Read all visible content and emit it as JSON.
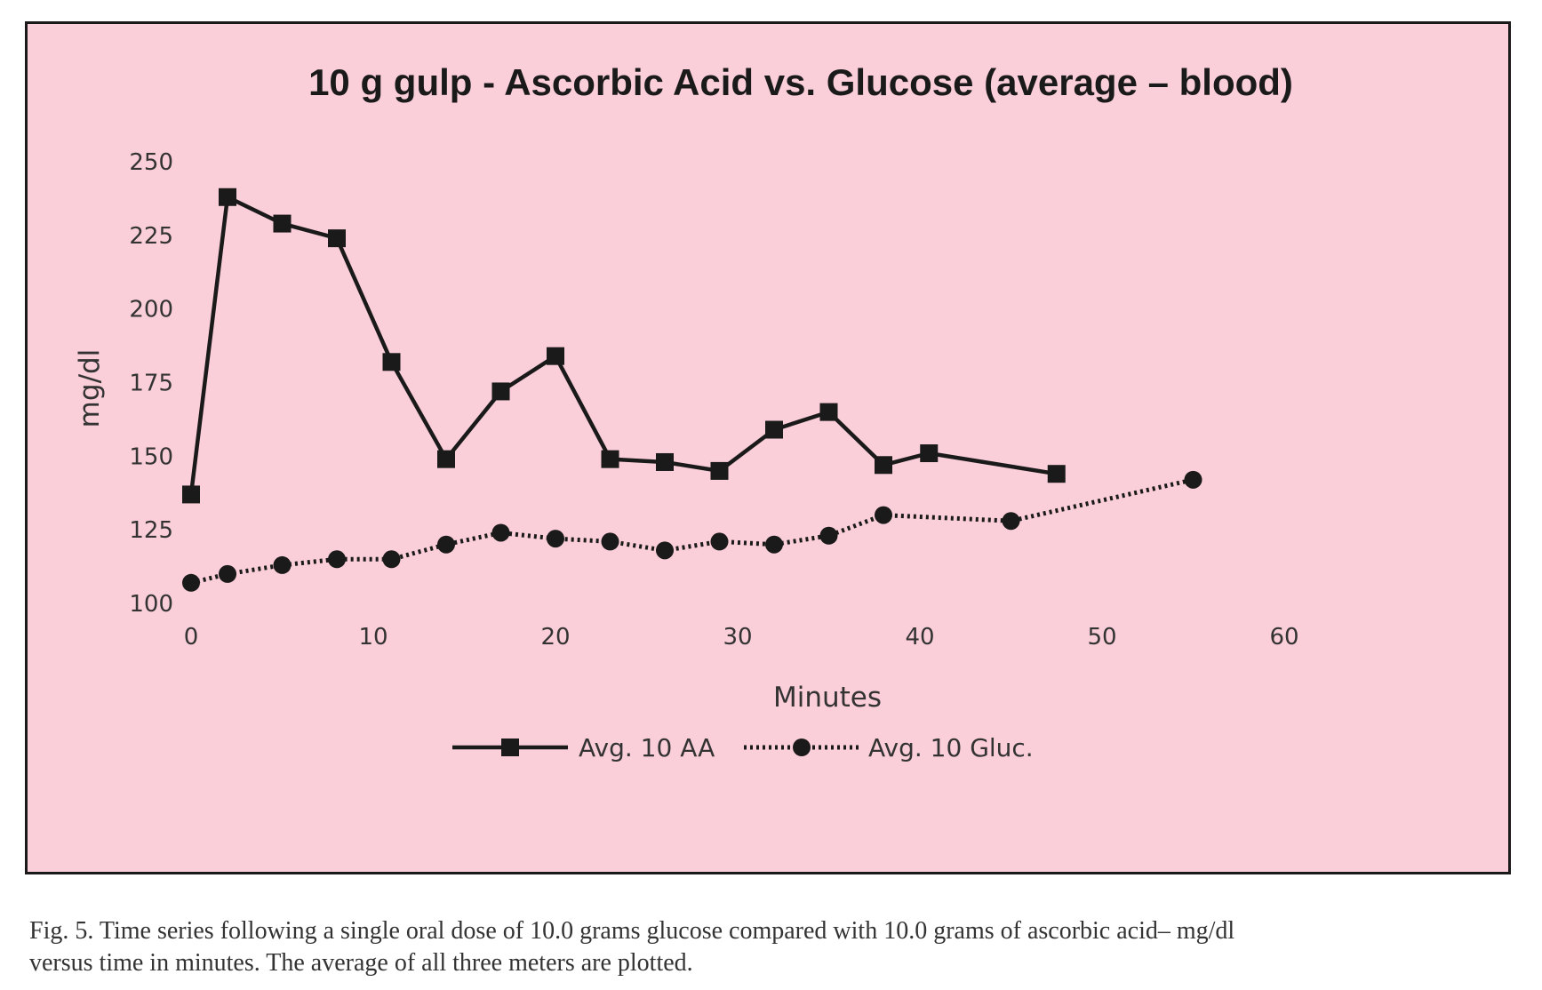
{
  "chart_data": {
    "type": "line",
    "title": "10 g gulp - Ascorbic Acid vs. Glucose (average – blood)",
    "xlabel": "Minutes",
    "ylabel": "mg/dl",
    "xlim": [
      0,
      60
    ],
    "ylim": [
      100,
      250
    ],
    "x_ticks": [
      "0",
      "10",
      "20",
      "30",
      "40",
      "50",
      "60"
    ],
    "y_ticks": [
      "100",
      "125",
      "150",
      "175",
      "200",
      "225",
      "250"
    ],
    "grid": false,
    "legend_position": "bottom",
    "background_color": "#fbcfd9",
    "series": [
      {
        "name": "Avg. 10 AA",
        "line_style": "solid",
        "marker": "square",
        "color": "#1a1a1a",
        "points": [
          [
            0,
            137
          ],
          [
            2,
            238
          ],
          [
            5,
            229
          ],
          [
            8,
            224
          ],
          [
            11,
            182
          ],
          [
            14,
            149
          ],
          [
            17,
            172
          ],
          [
            20,
            184
          ],
          [
            23,
            149
          ],
          [
            26,
            148
          ],
          [
            29,
            145
          ],
          [
            32,
            159
          ],
          [
            35,
            165
          ],
          [
            38,
            147
          ],
          [
            40.5,
            151
          ],
          [
            47.5,
            144
          ]
        ]
      },
      {
        "name": "Avg. 10 Gluc.",
        "line_style": "dotted",
        "marker": "circle",
        "color": "#1a1a1a",
        "points": [
          [
            0,
            107
          ],
          [
            2,
            110
          ],
          [
            5,
            113
          ],
          [
            8,
            115
          ],
          [
            11,
            115
          ],
          [
            14,
            120
          ],
          [
            17,
            124
          ],
          [
            20,
            122
          ],
          [
            23,
            121
          ],
          [
            26,
            118
          ],
          [
            29,
            121
          ],
          [
            32,
            120
          ],
          [
            35,
            123
          ],
          [
            38,
            130
          ],
          [
            45,
            128
          ],
          [
            55,
            142
          ]
        ]
      }
    ]
  },
  "caption": {
    "line1": "Fig. 5.  Time series following a single oral dose of 10.0 grams glucose compared with 10.0 grams of ascorbic acid– mg/dl",
    "line2": "versus time in minutes.  The average of all three meters are plotted."
  }
}
